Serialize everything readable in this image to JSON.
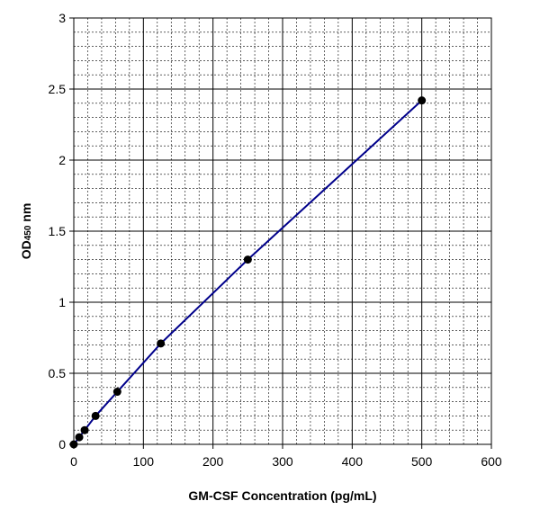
{
  "chart_data": {
    "type": "line",
    "title": "",
    "xlabel": "GM-CSF Concentration (pg/mL)",
    "ylabel": {
      "main": "OD",
      "subscript": "450",
      "suffix": " nm"
    },
    "xlim": [
      0,
      600
    ],
    "ylim": [
      0,
      3
    ],
    "x_ticks": [
      "0",
      "100",
      "200",
      "300",
      "400",
      "500",
      "600"
    ],
    "y_ticks": [
      "0",
      "0.5",
      "1",
      "1.5",
      "2",
      "2.5",
      "3"
    ],
    "x_tick_values": [
      0,
      100,
      200,
      300,
      400,
      500,
      600
    ],
    "y_tick_values": [
      0,
      0.5,
      1,
      1.5,
      2,
      2.5,
      3
    ],
    "x_minor_step": 20,
    "y_minor_step": 0.1,
    "grid": true,
    "legend": "none",
    "series": [
      {
        "x": [
          0,
          7.8,
          15.6,
          31.25,
          62.5,
          125,
          250,
          500
        ],
        "y": [
          0.0,
          0.05,
          0.1,
          0.2,
          0.37,
          0.71,
          1.3,
          2.42
        ],
        "color": "#00008B",
        "marker_color": "#000000"
      }
    ]
  }
}
